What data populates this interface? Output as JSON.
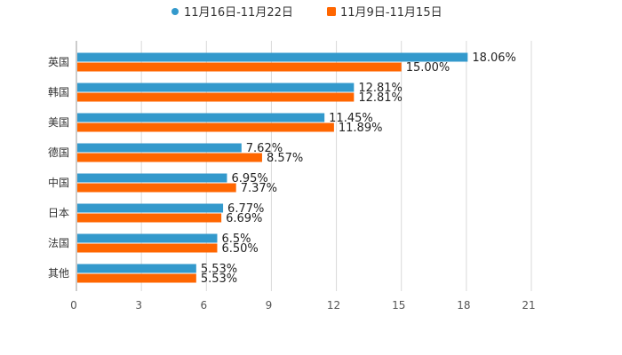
{
  "chart_data": {
    "type": "bar",
    "orientation": "horizontal",
    "title": "",
    "xlabel": "",
    "ylabel": "",
    "xlim": [
      0,
      21
    ],
    "x_ticks": [
      "0",
      "3",
      "6",
      "9",
      "12",
      "15",
      "18",
      "21"
    ],
    "grid": true,
    "legend_position": "top-center",
    "categories": [
      "英国",
      "韩国",
      "美国",
      "德国",
      "中国",
      "日本",
      "法国",
      "其他"
    ],
    "series": [
      {
        "name": "11月16日-11月22日",
        "color": "#3399cc",
        "values": [
          18.06,
          12.81,
          11.45,
          7.62,
          6.95,
          6.77,
          6.5,
          5.53
        ],
        "labels": [
          "18.06%",
          "12.81%",
          "11.45%",
          "7.62%",
          "6.95%",
          "6.77%",
          "6.5%",
          "5.53%"
        ]
      },
      {
        "name": "11月9日-11月15日",
        "color": "#ff6600",
        "values": [
          15.0,
          12.81,
          11.89,
          8.57,
          7.37,
          6.69,
          6.5,
          5.53
        ],
        "labels": [
          "15.00%",
          "12.81%",
          "11.89%",
          "8.57%",
          "7.37%",
          "6.69%",
          "6.50%",
          "5.53%"
        ]
      }
    ]
  }
}
